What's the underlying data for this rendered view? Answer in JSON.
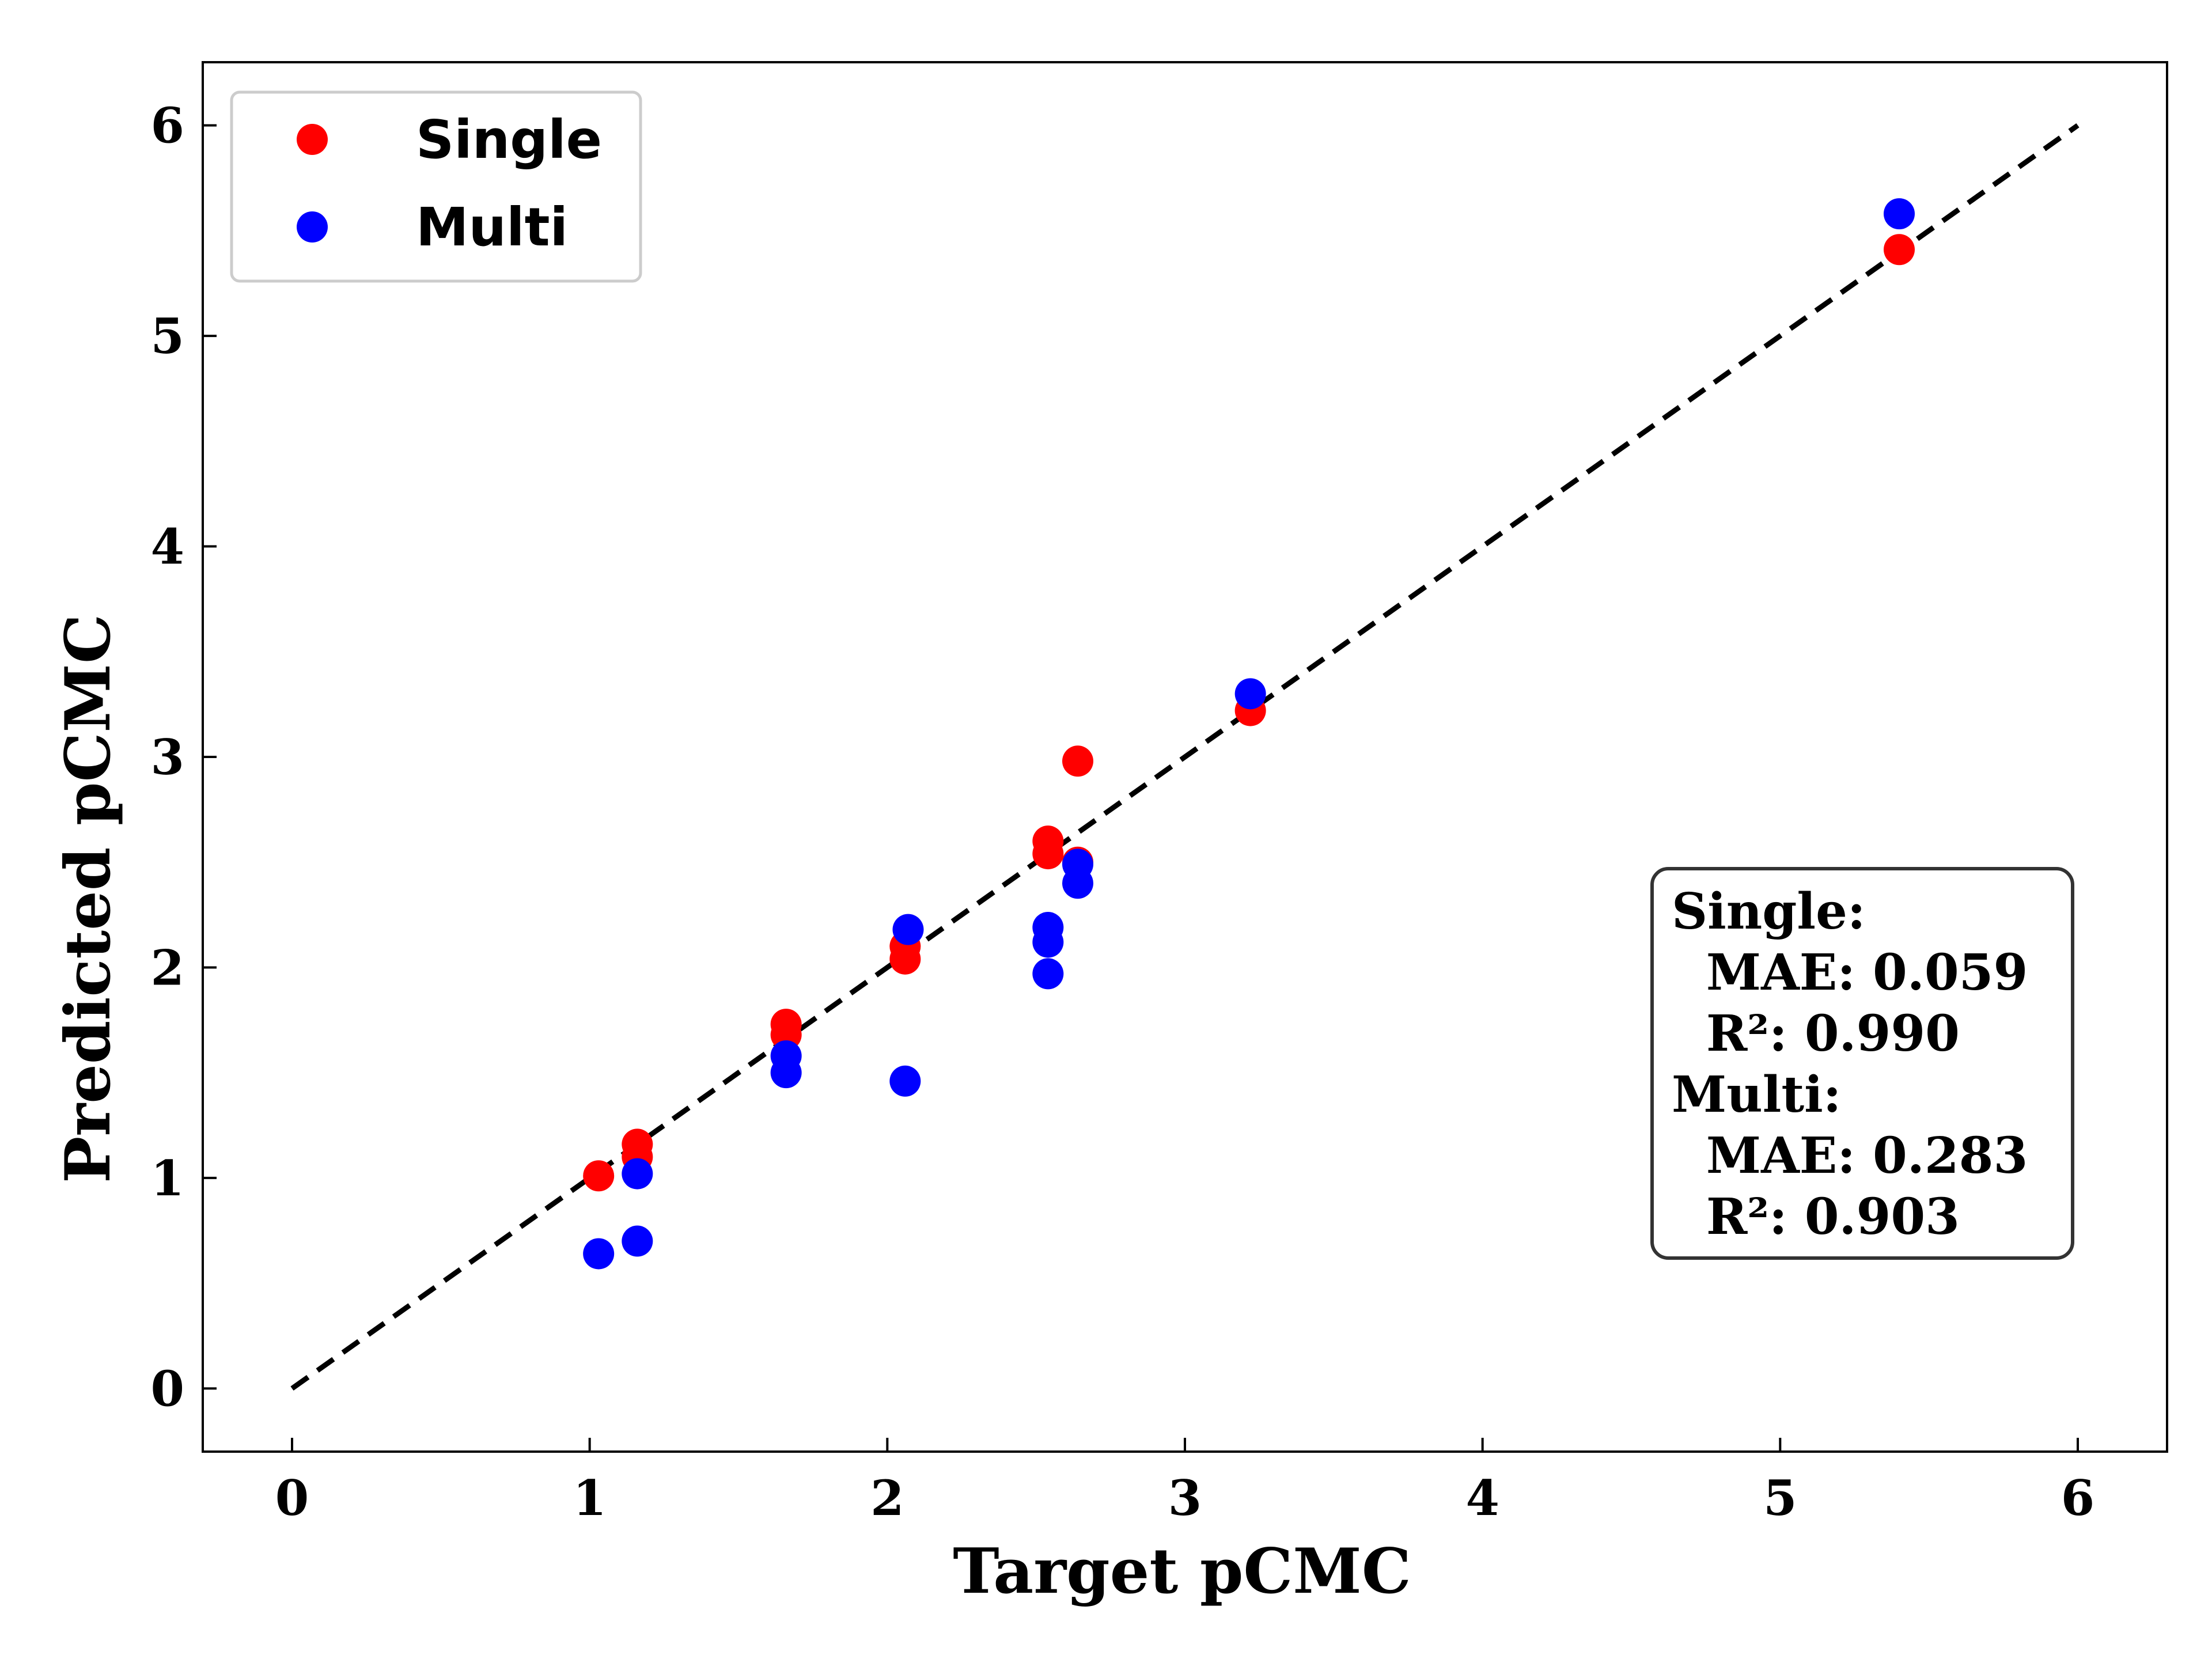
{
  "chart_data": {
    "type": "scatter",
    "title": "",
    "xlabel": "Target pCMC",
    "ylabel": "Predicted pCMC",
    "xlim": [
      -0.3,
      6.3
    ],
    "ylim": [
      -0.3,
      6.3
    ],
    "xticks": [
      "0",
      "1",
      "2",
      "3",
      "4",
      "5",
      "6"
    ],
    "yticks": [
      "0",
      "1",
      "2",
      "3",
      "4",
      "5",
      "6"
    ],
    "grid": false,
    "legend_position": "top-left",
    "reference_line": {
      "style": "dashed",
      "color": "#000000",
      "from": [
        0,
        0
      ],
      "to": [
        6,
        6
      ]
    },
    "series": [
      {
        "name": "Single",
        "color": "#ff0000",
        "points": [
          [
            1.03,
            1.01
          ],
          [
            1.16,
            1.1
          ],
          [
            1.16,
            1.16
          ],
          [
            1.66,
            1.68
          ],
          [
            1.66,
            1.73
          ],
          [
            2.06,
            2.04
          ],
          [
            2.06,
            2.1
          ],
          [
            2.54,
            2.54
          ],
          [
            2.54,
            2.6
          ],
          [
            2.64,
            2.5
          ],
          [
            2.64,
            2.98
          ],
          [
            3.22,
            3.22
          ],
          [
            5.4,
            5.41
          ]
        ]
      },
      {
        "name": "Multi",
        "color": "#0000ff",
        "points": [
          [
            1.03,
            0.64
          ],
          [
            1.16,
            0.7
          ],
          [
            1.16,
            1.02
          ],
          [
            1.66,
            1.5
          ],
          [
            1.66,
            1.58
          ],
          [
            2.06,
            1.46
          ],
          [
            2.07,
            2.18
          ],
          [
            2.54,
            1.97
          ],
          [
            2.54,
            2.12
          ],
          [
            2.54,
            2.19
          ],
          [
            2.64,
            2.4
          ],
          [
            2.64,
            2.49
          ],
          [
            3.22,
            3.3
          ],
          [
            5.4,
            5.58
          ]
        ]
      }
    ],
    "annotation": {
      "lines": [
        "Single:",
        "  MAE: 0.059",
        "  R²: 0.990",
        "Multi:",
        "  MAE: 0.283",
        "  R²: 0.903"
      ]
    }
  }
}
